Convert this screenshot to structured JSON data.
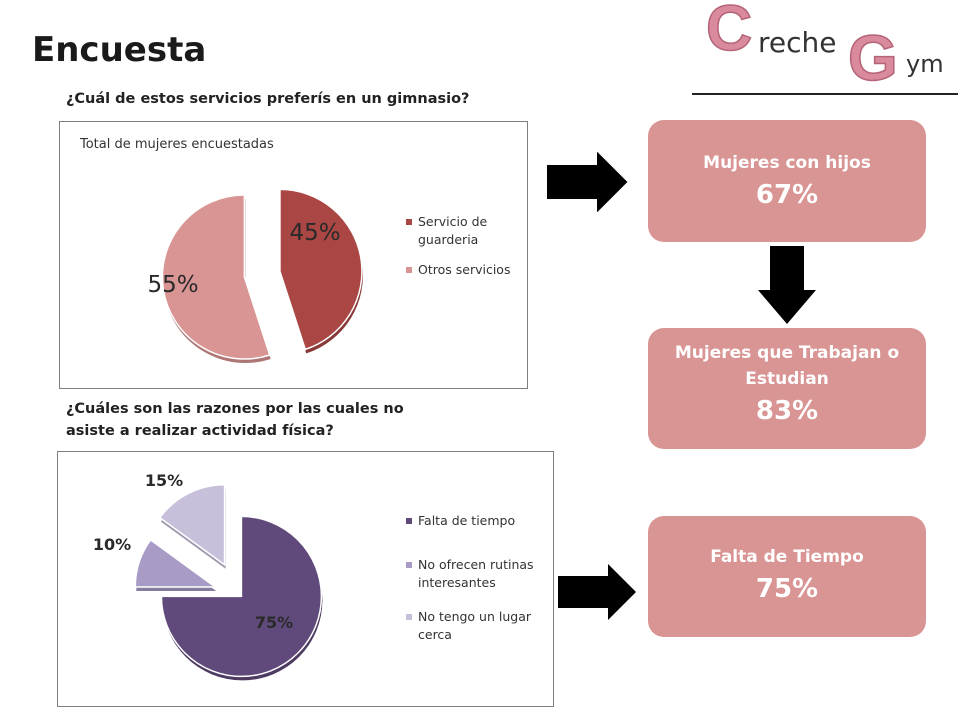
{
  "title": "Encuesta",
  "logo": {
    "letter1": "C",
    "text1": "reche",
    "letter2": "G",
    "text2": "ym"
  },
  "question1": "¿Cuál de estos servicios preferís en un gimnasio?",
  "question2": "¿Cuáles son las razones por las cuales no asiste a realizar actividad física?",
  "cards": [
    {
      "label": "Mujeres con hijos",
      "value": "67%"
    },
    {
      "label": "Mujeres que Trabajan o Estudian",
      "value": "83%"
    },
    {
      "label": "Falta de Tiempo",
      "value": "75%"
    }
  ],
  "colors": {
    "card": "#d99594",
    "card_text": "#ffffff",
    "arrow": "#000000",
    "logo_letters": "#d98a9c"
  },
  "chart_data": [
    {
      "type": "pie",
      "title": "Total de mujeres encuestadas",
      "categories": [
        "Servicio de guarderia",
        "Otros servicios"
      ],
      "values": [
        45,
        55
      ],
      "labels": [
        "45%",
        "55%"
      ],
      "colors": [
        "#aa4643",
        "#d99594"
      ],
      "exploded": true,
      "legend": "right"
    },
    {
      "type": "pie",
      "title": "",
      "categories": [
        "Falta de tiempo",
        "No ofrecen rutinas interesantes",
        "No tengo un lugar cerca"
      ],
      "values": [
        75,
        10,
        15
      ],
      "labels": [
        "75%",
        "10%",
        "15%"
      ],
      "colors": [
        "#604a7b",
        "#a89bc5",
        "#c8bfda"
      ],
      "exploded": true,
      "legend": "right"
    }
  ]
}
